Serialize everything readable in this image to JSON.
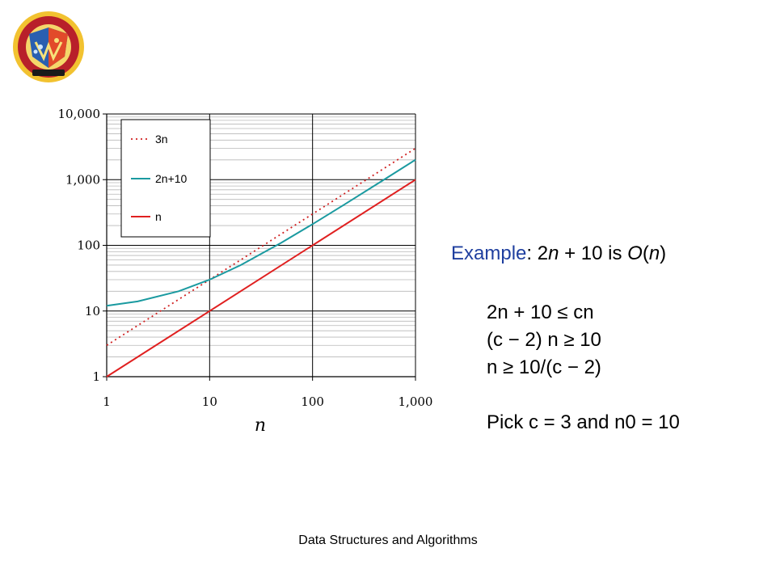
{
  "colors": {
    "accent": "#1f3f9f",
    "series_3n": "#d02020",
    "series_2n10": "#1a9aa0",
    "series_n": "#e02020"
  },
  "logo": {
    "icon": "university-seal-icon"
  },
  "chart_data": {
    "type": "line",
    "x_scale": "log",
    "y_scale": "log",
    "xlim": [
      1,
      1000
    ],
    "ylim": [
      1,
      10000
    ],
    "x_ticks": [
      1,
      10,
      100,
      1000
    ],
    "x_tick_labels": [
      "1",
      "10",
      "100",
      "1,000"
    ],
    "y_ticks": [
      1,
      10,
      100,
      1000,
      10000
    ],
    "y_tick_labels": [
      "1",
      "10",
      "100",
      "1,000",
      "10,000"
    ],
    "xlabel": "n",
    "ylabel": "",
    "grid": true,
    "legend_position": "top-left",
    "series": [
      {
        "name": "3n",
        "style": "dotted",
        "color": "#d02020",
        "x": [
          1,
          10,
          100,
          1000
        ],
        "y": [
          3,
          30,
          300,
          3000
        ]
      },
      {
        "name": "2n+10",
        "style": "solid",
        "color": "#1a9aa0",
        "x": [
          1,
          2,
          5,
          10,
          20,
          50,
          100,
          200,
          500,
          1000
        ],
        "y": [
          12,
          14,
          20,
          30,
          50,
          110,
          210,
          410,
          1010,
          2010
        ]
      },
      {
        "name": "n",
        "style": "solid",
        "color": "#e02020",
        "x": [
          1,
          10,
          100,
          1000
        ],
        "y": [
          1,
          10,
          100,
          1000
        ]
      }
    ]
  },
  "example": {
    "label": "Example",
    "rest_plain": ": 2",
    "n1": "n",
    "mid": " + 10 is ",
    "O": "O",
    "paren_open": "(",
    "n2": "n",
    "paren_close": ")"
  },
  "steps": {
    "line1": "2n + 10 ≤ cn",
    "line2": "(c − 2) n ≥ 10",
    "line3": "n ≥ 10/(c − 2)",
    "line4": "Pick c = 3 and n0 = 10"
  },
  "footer": "Data Structures and Algorithms"
}
